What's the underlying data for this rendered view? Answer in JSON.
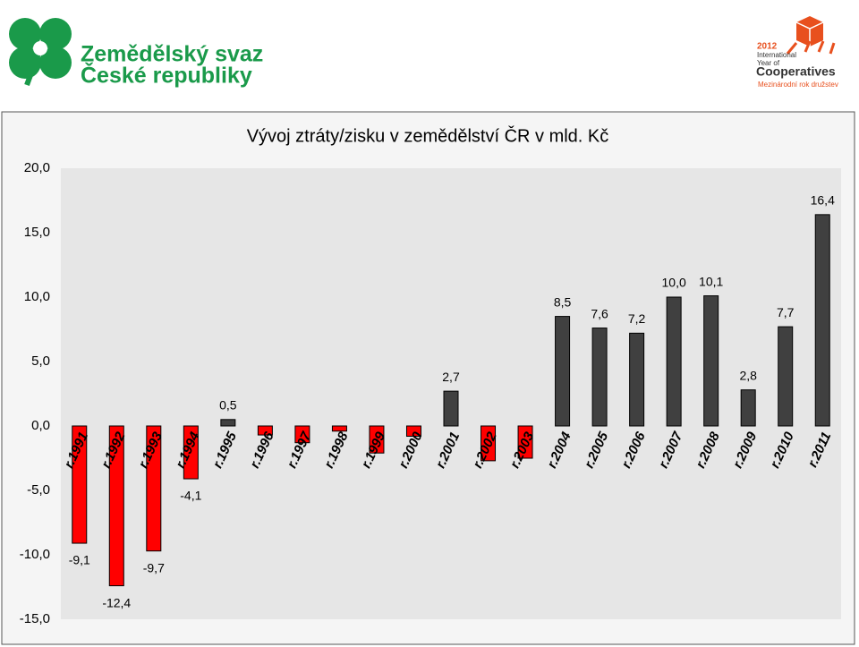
{
  "header": {
    "org_line1": "Zemědělský svaz",
    "org_line2": "České republiky",
    "coop_year": "2012",
    "coop_line1": "International",
    "coop_line2": "Year of",
    "coop_line3": "Cooperatives",
    "coop_sub": "Mezinárodní rok družstev"
  },
  "chart_data": {
    "type": "bar",
    "title": "Vývoj ztráty/zisku v zemědělství ČR v mld. Kč",
    "categories": [
      "r.1991",
      "r.1992",
      "r.1993",
      "r.1994",
      "r.1995",
      "r.1996",
      "r.1997",
      "r.1998",
      "r.1999",
      "r.2000",
      "r.2001",
      "r.2002",
      "r.2003",
      "r.2004",
      "r.2005",
      "r.2006",
      "r.2007",
      "r.2008",
      "r.2009",
      "r.2010",
      "r.2011"
    ],
    "values": [
      -9.1,
      -12.4,
      -9.7,
      -4.1,
      0.5,
      -0.7,
      -1.3,
      -0.4,
      -2.1,
      -0.8,
      2.7,
      -2.7,
      -2.5,
      8.5,
      7.6,
      7.2,
      10.0,
      10.1,
      2.8,
      7.7,
      16.4
    ],
    "value_labels": [
      "-9,1",
      "-12,4",
      "-9,7",
      "-4,1",
      "0,5",
      null,
      null,
      null,
      null,
      null,
      "2,7",
      null,
      null,
      "8,5",
      "7,6",
      "7,2",
      "10,0",
      "10,1",
      "2,8",
      "7,7",
      "16,4"
    ],
    "colors": [
      "#ff0000",
      "#ff0000",
      "#ff0000",
      "#ff0000",
      "#404040",
      "#ff0000",
      "#ff0000",
      "#ff0000",
      "#ff0000",
      "#ff0000",
      "#404040",
      "#ff0000",
      "#ff0000",
      "#404040",
      "#404040",
      "#404040",
      "#404040",
      "#404040",
      "#404040",
      "#404040",
      "#404040"
    ],
    "ylim": [
      -15,
      20
    ],
    "yticks": [
      {
        "value": -15,
        "label": "-15,0"
      },
      {
        "value": -10,
        "label": "-10,0"
      },
      {
        "value": -5,
        "label": "-5,0"
      },
      {
        "value": 0,
        "label": "0,0"
      },
      {
        "value": 5,
        "label": "5,0"
      },
      {
        "value": 10,
        "label": "10,0"
      },
      {
        "value": 15,
        "label": "15,0"
      },
      {
        "value": 20,
        "label": "20,0"
      }
    ],
    "grid": false
  }
}
